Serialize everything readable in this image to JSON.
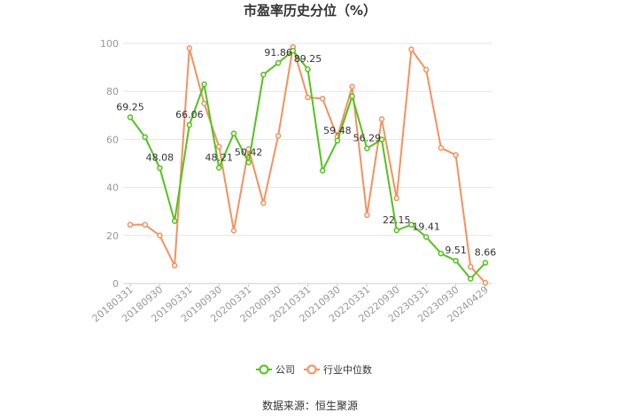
{
  "chart_data": {
    "type": "line",
    "title": "市盈率历史分位（%）",
    "source": "数据来源：恒生聚源",
    "ylim": [
      0,
      100
    ],
    "yticks": [
      0,
      20,
      40,
      60,
      80,
      100
    ],
    "x": [
      "20180331",
      "20180630",
      "20180930",
      "20181231",
      "20190331",
      "20190630",
      "20190930",
      "20191231",
      "20200331",
      "20200630",
      "20200930",
      "20201231",
      "20210331",
      "20210630",
      "20210930",
      "20211231",
      "20220331",
      "20220630",
      "20220930",
      "20221231",
      "20230331",
      "20230630",
      "20230930",
      "20231231",
      "20240429"
    ],
    "xtick_labels": [
      "20180331",
      "20180930",
      "20190331",
      "20190930",
      "20200331",
      "20200930",
      "20210331",
      "20210930",
      "20220331",
      "20220930",
      "20230331",
      "20230930",
      "20240429"
    ],
    "grid": true,
    "legend_position": "bottom",
    "series": [
      {
        "name": "公司",
        "color": "#52c41a",
        "values": [
          69.25,
          61,
          48.08,
          26,
          66.06,
          83,
          48.21,
          62.5,
          50.42,
          87,
          91.86,
          97,
          89.25,
          47,
          59.48,
          78,
          56.29,
          60,
          22.15,
          24.5,
          19.41,
          12.5,
          9.51,
          2,
          8.66
        ],
        "labels": {
          "0": "69.25",
          "2": "48.08",
          "4": "66.06",
          "6": "48.21",
          "8": "50.42",
          "10": "91.86",
          "12": "89.25",
          "14": "59.48",
          "16": "56.29",
          "18": "22.15",
          "20": "19.41",
          "22": "9.51",
          "24": "8.66"
        }
      },
      {
        "name": "行业中位数",
        "color": "#f5915e",
        "values": [
          24.5,
          24.5,
          20,
          7.5,
          98,
          75,
          57,
          22,
          56,
          33.5,
          61.5,
          98.5,
          77.5,
          77,
          61,
          82,
          28.5,
          68.5,
          35.5,
          97.5,
          89,
          56.5,
          53.5,
          7,
          0.3
        ]
      }
    ]
  }
}
